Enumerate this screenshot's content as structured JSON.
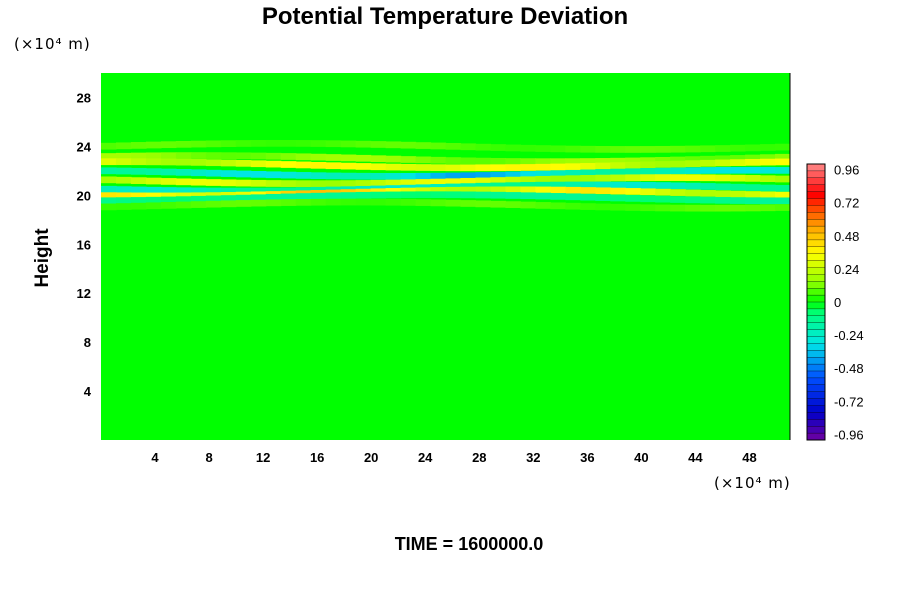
{
  "chart_data": {
    "type": "heatmap",
    "title": "Potential Temperature Deviation",
    "ylabel": "Height",
    "y_unit_label": "(×10⁴ m)",
    "x_unit_label": "(×10⁴ m)",
    "xlim": [
      0,
      51
    ],
    "ylim": [
      0,
      30
    ],
    "x_ticks": [
      "4",
      "8",
      "12",
      "16",
      "20",
      "24",
      "28",
      "32",
      "36",
      "40",
      "44",
      "48"
    ],
    "y_ticks": [
      "4",
      "8",
      "12",
      "16",
      "20",
      "24",
      "28"
    ],
    "colorbar": {
      "min": -1.0,
      "max": 1.0,
      "levels": 40,
      "tick_labels": [
        "0.96",
        "0.72",
        "0.48",
        "0.24",
        "0",
        "-0.24",
        "-0.48",
        "-0.72",
        "-0.96"
      ]
    },
    "background_value": 0.0,
    "bands": [
      {
        "y": 24.0,
        "amplitude": 0.1,
        "note": "faint lighter band"
      },
      {
        "y": 23.0,
        "amplitude": 0.18
      },
      {
        "y": 22.5,
        "amplitude": 0.35,
        "peak_x": 24,
        "peak_amplitude": 0.55
      },
      {
        "y": 21.8,
        "amplitude": -0.3,
        "peak_x": 24,
        "peak_amplitude": -0.5
      },
      {
        "y": 21.2,
        "amplitude": 0.32,
        "peak_x": 40
      },
      {
        "y": 20.6,
        "amplitude": -0.25
      },
      {
        "y": 20.2,
        "amplitude": 0.4,
        "peak_x": 12,
        "peak_amplitude": 0.6
      },
      {
        "y": 19.8,
        "amplitude": -0.15
      },
      {
        "y": 19.2,
        "amplitude": 0.1
      }
    ]
  },
  "footer": {
    "time_label": "TIME = 1600000.0"
  }
}
